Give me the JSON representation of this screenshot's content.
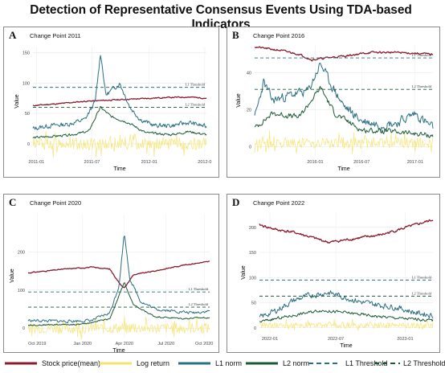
{
  "title": "Detection of Representative Consensus Events Using TDA-based Indicators",
  "colors": {
    "price": "#8b1a2b",
    "logret": "#f5e36c",
    "l1": "#2a6f82",
    "l2": "#1a5a36",
    "l1_threshold": "#2a6f82",
    "l2_threshold": "#1a5a36"
  },
  "legend": {
    "items": [
      {
        "label": "Stock price(mean)",
        "key": "price",
        "style": "solid"
      },
      {
        "label": "Log return",
        "key": "logret",
        "style": "solid"
      },
      {
        "label": "L1 norm",
        "key": "l1",
        "style": "solid"
      },
      {
        "label": "L2 norm",
        "key": "l2",
        "style": "solid"
      },
      {
        "label": "L1 Threshold",
        "key": "l1_threshold",
        "style": "dashed"
      },
      {
        "label": "L2 Threshold",
        "key": "l2_threshold",
        "style": "dashed"
      }
    ]
  },
  "chart_data": [
    {
      "id": "A",
      "type": "line",
      "subtitle": "Change Point 2011",
      "xlabel": "Time",
      "ylabel": "Value",
      "xlim": [
        0,
        1
      ],
      "xticks": [
        {
          "pos": 0.02,
          "label": "2011-01"
        },
        {
          "pos": 0.34,
          "label": "2011-07"
        },
        {
          "pos": 0.67,
          "label": "2012-01"
        },
        {
          "pos": 0.99,
          "label": "2012-0"
        }
      ],
      "ylim": [
        -20,
        160
      ],
      "yticks": [
        0,
        50,
        100,
        150
      ],
      "thresholds": [
        {
          "key": "l1_threshold",
          "value": 93,
          "label": "L1 Threshold"
        },
        {
          "key": "l2_threshold",
          "value": 60,
          "label": "L2 Threshold"
        }
      ],
      "series": [
        {
          "key": "price",
          "base": [
            [
              0,
              63
            ],
            [
              0.15,
              66
            ],
            [
              0.3,
              70
            ],
            [
              0.45,
              72
            ],
            [
              0.6,
              74
            ],
            [
              0.75,
              76
            ],
            [
              0.9,
              77
            ],
            [
              1,
              75
            ]
          ],
          "noise": 1.5,
          "seed": 11
        },
        {
          "key": "logret",
          "base": [
            [
              0,
              0
            ],
            [
              1,
              0
            ]
          ],
          "noise": 10,
          "seed": 12,
          "spiky": true
        },
        {
          "key": "l1",
          "base": [
            [
              0,
              25
            ],
            [
              0.1,
              30
            ],
            [
              0.2,
              32
            ],
            [
              0.3,
              40
            ],
            [
              0.36,
              70
            ],
            [
              0.39,
              150
            ],
            [
              0.42,
              80
            ],
            [
              0.5,
              100
            ],
            [
              0.56,
              60
            ],
            [
              0.62,
              40
            ],
            [
              0.7,
              30
            ],
            [
              0.8,
              30
            ],
            [
              0.9,
              35
            ],
            [
              1,
              28
            ]
          ],
          "noise": 6,
          "seed": 13
        },
        {
          "key": "l2",
          "base": [
            [
              0,
              10
            ],
            [
              0.2,
              14
            ],
            [
              0.32,
              20
            ],
            [
              0.39,
              60
            ],
            [
              0.45,
              45
            ],
            [
              0.55,
              35
            ],
            [
              0.65,
              18
            ],
            [
              0.8,
              15
            ],
            [
              0.9,
              20
            ],
            [
              1,
              15
            ]
          ],
          "noise": 3,
          "seed": 14
        }
      ]
    },
    {
      "id": "B",
      "type": "line",
      "subtitle": "Change Point 2016",
      "xlabel": "Time",
      "ylabel": "Value",
      "xlim": [
        0,
        1
      ],
      "xticks": [
        {
          "pos": 0.34,
          "label": "2016-01"
        },
        {
          "pos": 0.6,
          "label": "2016-07"
        },
        {
          "pos": 0.9,
          "label": "2017-01"
        }
      ],
      "ylim": [
        -5,
        55
      ],
      "yticks": [
        0,
        20,
        40
      ],
      "thresholds": [
        {
          "key": "l1_threshold",
          "value": 48,
          "label": "L1 Threshold"
        },
        {
          "key": "l2_threshold",
          "value": 31,
          "label": "L2 Threshold"
        }
      ],
      "series": [
        {
          "key": "price",
          "base": [
            [
              0,
              54
            ],
            [
              0.15,
              52
            ],
            [
              0.25,
              50
            ],
            [
              0.32,
              47
            ],
            [
              0.4,
              48
            ],
            [
              0.5,
              49
            ],
            [
              0.65,
              51
            ],
            [
              0.8,
              51
            ],
            [
              1,
              50
            ]
          ],
          "noise": 0.8,
          "seed": 21
        },
        {
          "key": "logret",
          "base": [
            [
              0,
              2
            ],
            [
              1,
              2
            ]
          ],
          "noise": 3,
          "seed": 22,
          "spiky": true
        },
        {
          "key": "l1",
          "base": [
            [
              0,
              15
            ],
            [
              0.05,
              35
            ],
            [
              0.1,
              25
            ],
            [
              0.2,
              28
            ],
            [
              0.3,
              30
            ],
            [
              0.37,
              45
            ],
            [
              0.42,
              35
            ],
            [
              0.5,
              22
            ],
            [
              0.6,
              14
            ],
            [
              0.7,
              12
            ],
            [
              0.8,
              13
            ],
            [
              0.9,
              18
            ],
            [
              1,
              10
            ]
          ],
          "noise": 4,
          "seed": 23
        },
        {
          "key": "l2",
          "base": [
            [
              0,
              10
            ],
            [
              0.1,
              18
            ],
            [
              0.25,
              16
            ],
            [
              0.37,
              32
            ],
            [
              0.45,
              18
            ],
            [
              0.6,
              9
            ],
            [
              0.8,
              8
            ],
            [
              1,
              6
            ]
          ],
          "noise": 2.2,
          "seed": 24
        }
      ]
    },
    {
      "id": "C",
      "type": "line",
      "subtitle": "Change Point 2020",
      "xlabel": "Time",
      "ylabel": "Value",
      "xlim": [
        0,
        1
      ],
      "xticks": [
        {
          "pos": 0.05,
          "label": "Oct 2019"
        },
        {
          "pos": 0.3,
          "label": "Jan 2020"
        },
        {
          "pos": 0.53,
          "label": "Apr 2020"
        },
        {
          "pos": 0.76,
          "label": "Jul 2020"
        },
        {
          "pos": 0.97,
          "label": "Oct 2020"
        }
      ],
      "ylim": [
        -25,
        300
      ],
      "yticks": [
        0,
        100,
        200
      ],
      "thresholds": [
        {
          "key": "l1_threshold",
          "value": 95,
          "label": "L1 Threshold"
        },
        {
          "key": "l2_threshold",
          "value": 55,
          "label": "L2 Threshold"
        }
      ],
      "series": [
        {
          "key": "price",
          "base": [
            [
              0,
              145
            ],
            [
              0.2,
              155
            ],
            [
              0.35,
              160
            ],
            [
              0.45,
              155
            ],
            [
              0.5,
              120
            ],
            [
              0.53,
              105
            ],
            [
              0.58,
              140
            ],
            [
              0.7,
              150
            ],
            [
              0.85,
              165
            ],
            [
              1,
              175
            ]
          ],
          "noise": 2,
          "seed": 31
        },
        {
          "key": "logret",
          "base": [
            [
              0,
              0
            ],
            [
              1,
              0
            ]
          ],
          "noise": 14,
          "seed": 32,
          "spiky": true
        },
        {
          "key": "l1",
          "base": [
            [
              0,
              20
            ],
            [
              0.2,
              18
            ],
            [
              0.35,
              20
            ],
            [
              0.45,
              40
            ],
            [
              0.5,
              110
            ],
            [
              0.53,
              250
            ],
            [
              0.56,
              130
            ],
            [
              0.62,
              70
            ],
            [
              0.7,
              50
            ],
            [
              0.8,
              45
            ],
            [
              0.9,
              40
            ],
            [
              1,
              45
            ]
          ],
          "noise": 6,
          "seed": 33
        },
        {
          "key": "l2",
          "base": [
            [
              0,
              8
            ],
            [
              0.3,
              10
            ],
            [
              0.45,
              25
            ],
            [
              0.53,
              120
            ],
            [
              0.58,
              60
            ],
            [
              0.7,
              30
            ],
            [
              0.85,
              25
            ],
            [
              1,
              28
            ]
          ],
          "noise": 3,
          "seed": 34
        }
      ]
    },
    {
      "id": "D",
      "type": "line",
      "subtitle": "Change Point 2022",
      "xlabel": "Time",
      "ylabel": "Value",
      "xlim": [
        0,
        1
      ],
      "xticks": [
        {
          "pos": 0.06,
          "label": "2022-01"
        },
        {
          "pos": 0.44,
          "label": "2022-07"
        },
        {
          "pos": 0.84,
          "label": "2023-01"
        }
      ],
      "ylim": [
        -10,
        230
      ],
      "yticks": [
        0,
        50,
        100,
        150,
        200
      ],
      "thresholds": [
        {
          "key": "l1_threshold",
          "value": 95,
          "label": "L1 Threshold"
        },
        {
          "key": "l2_threshold",
          "value": 63,
          "label": "L2 Threshold"
        }
      ],
      "series": [
        {
          "key": "price",
          "base": [
            [
              0,
              205
            ],
            [
              0.1,
              195
            ],
            [
              0.2,
              190
            ],
            [
              0.3,
              180
            ],
            [
              0.4,
              170
            ],
            [
              0.5,
              175
            ],
            [
              0.6,
              180
            ],
            [
              0.7,
              185
            ],
            [
              0.8,
              195
            ],
            [
              0.9,
              205
            ],
            [
              1,
              215
            ]
          ],
          "noise": 4,
          "seed": 41
        },
        {
          "key": "logret",
          "base": [
            [
              0,
              5
            ],
            [
              1,
              5
            ]
          ],
          "noise": 6,
          "seed": 42,
          "spiky": true
        },
        {
          "key": "l1",
          "base": [
            [
              0,
              20
            ],
            [
              0.1,
              35
            ],
            [
              0.2,
              55
            ],
            [
              0.3,
              65
            ],
            [
              0.4,
              70
            ],
            [
              0.5,
              60
            ],
            [
              0.6,
              50
            ],
            [
              0.7,
              45
            ],
            [
              0.8,
              40
            ],
            [
              0.9,
              30
            ],
            [
              1,
              25
            ]
          ],
          "noise": 9,
          "seed": 43
        },
        {
          "key": "l2",
          "base": [
            [
              0,
              12
            ],
            [
              0.2,
              25
            ],
            [
              0.35,
              35
            ],
            [
              0.5,
              30
            ],
            [
              0.7,
              22
            ],
            [
              0.85,
              18
            ],
            [
              1,
              15
            ]
          ],
          "noise": 4.5,
          "seed": 44
        }
      ]
    }
  ]
}
